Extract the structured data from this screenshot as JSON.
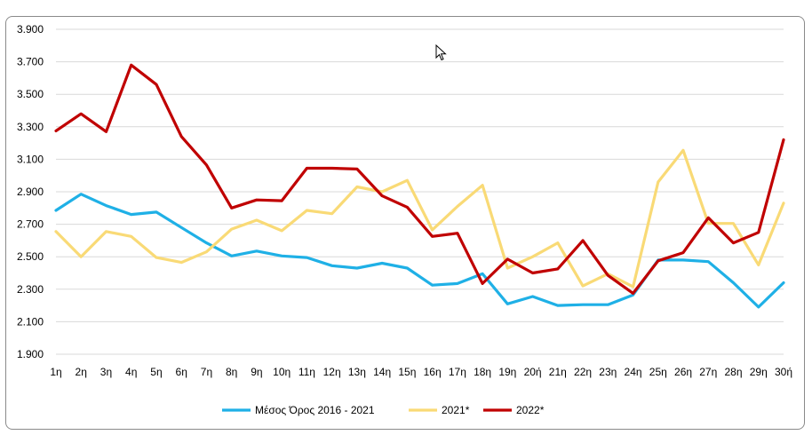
{
  "chart_data": {
    "type": "line",
    "categories": [
      "1η",
      "2η",
      "3η",
      "4η",
      "5η",
      "6η",
      "7η",
      "8η",
      "9η",
      "10η",
      "11η",
      "12η",
      "13η",
      "14η",
      "15η",
      "16η",
      "17η",
      "18η",
      "19η",
      "20ή",
      "21η",
      "22η",
      "23η",
      "24η",
      "25η",
      "26η",
      "27η",
      "28η",
      "29η",
      "30ή"
    ],
    "series": [
      {
        "name": "Μέσος Όρος 2016 - 2021",
        "color": "#1fb0e6",
        "values": [
          2785,
          2885,
          2815,
          2760,
          2775,
          2680,
          2585,
          2505,
          2535,
          2505,
          2495,
          2445,
          2430,
          2460,
          2430,
          2325,
          2335,
          2395,
          2210,
          2255,
          2200,
          2205,
          2205,
          2265,
          2480,
          2480,
          2470,
          2340,
          2190,
          2340
        ]
      },
      {
        "name": "2021*",
        "color": "#f9da76",
        "values": [
          2655,
          2500,
          2655,
          2625,
          2495,
          2465,
          2530,
          2670,
          2725,
          2660,
          2785,
          2765,
          2930,
          2900,
          2970,
          2665,
          2810,
          2940,
          2430,
          2500,
          2585,
          2320,
          2395,
          2315,
          2960,
          3155,
          2705,
          2705,
          2450,
          2830
        ]
      },
      {
        "name": "2022*",
        "color": "#c00000",
        "values": [
          3275,
          3380,
          3270,
          3680,
          3560,
          3240,
          3065,
          2800,
          2850,
          2845,
          3045,
          3045,
          3040,
          2875,
          2805,
          2625,
          2645,
          2335,
          2485,
          2400,
          2425,
          2600,
          2385,
          2275,
          2475,
          2525,
          2740,
          2585,
          2650,
          3220
        ]
      }
    ],
    "y_ticks": [
      "1.900",
      "2.100",
      "2.300",
      "2.500",
      "2.700",
      "2.900",
      "3.100",
      "3.300",
      "3.500",
      "3.700",
      "3.900"
    ],
    "ylim": [
      1900,
      3900
    ],
    "grid": true,
    "legend": "bottom"
  }
}
